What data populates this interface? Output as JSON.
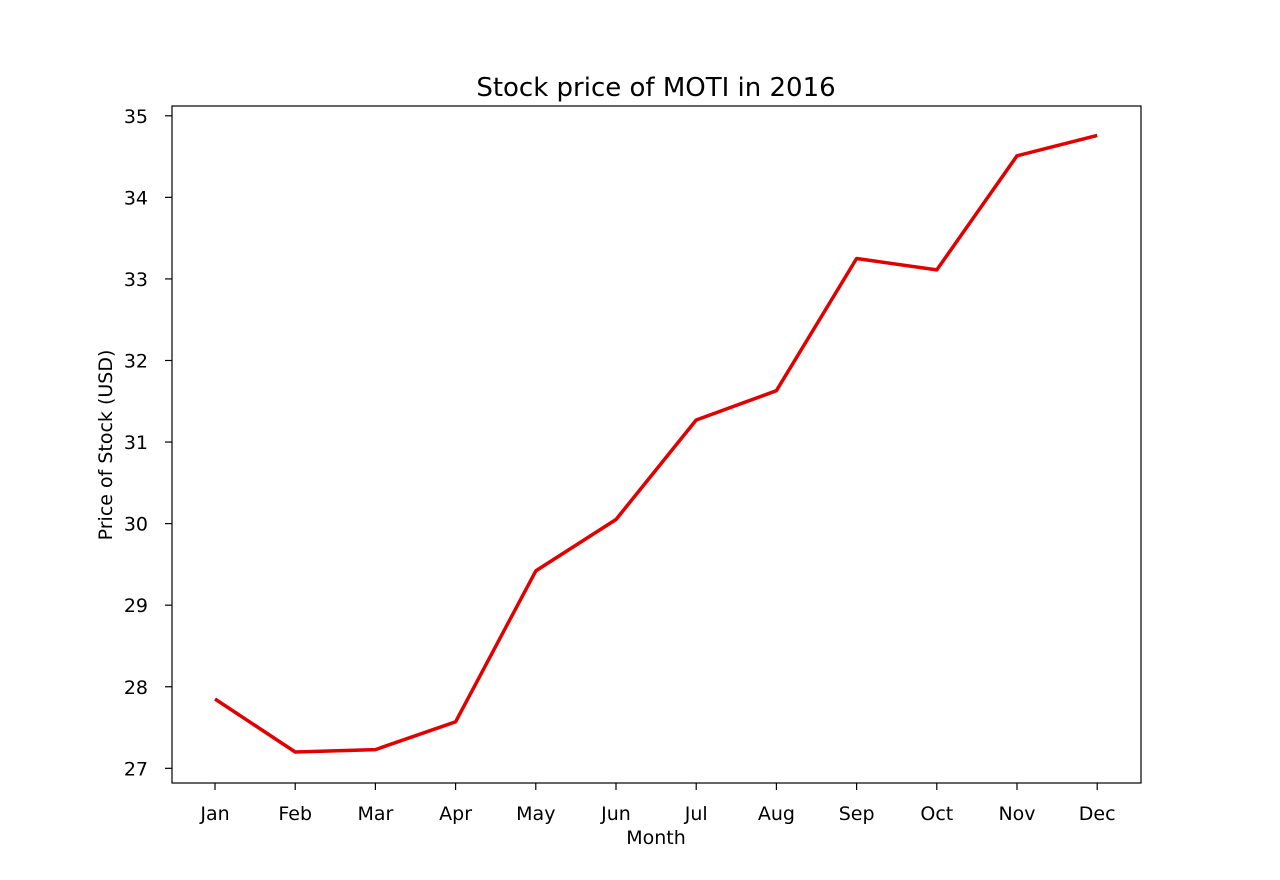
{
  "chart_data": {
    "type": "line",
    "title": "Stock price of MOTI in 2016",
    "xlabel": "Month",
    "ylabel": "Price of Stock (USD)",
    "categories": [
      "Jan",
      "Feb",
      "Mar",
      "Apr",
      "May",
      "Jun",
      "Jul",
      "Aug",
      "Sep",
      "Oct",
      "Nov",
      "Dec"
    ],
    "series": [
      {
        "values": [
          27.85,
          27.2,
          27.23,
          27.57,
          29.42,
          30.05,
          31.27,
          31.63,
          33.25,
          33.11,
          34.51,
          34.76
        ],
        "color": "#e00000"
      }
    ],
    "yticks": [
      27,
      28,
      29,
      30,
      31,
      32,
      33,
      34,
      35
    ],
    "ylim": [
      26.82,
      35.12
    ],
    "grid": false,
    "legend": "none"
  }
}
